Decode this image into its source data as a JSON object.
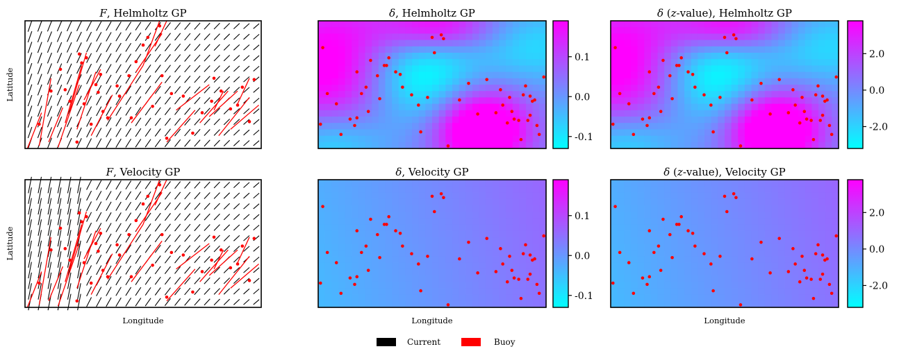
{
  "colors": {
    "current": "#000000",
    "buoy": "#ff0000",
    "cmap_low": "#00ffff",
    "cmap_high": "#ff00ff"
  },
  "chart_data": [
    {
      "type": "quiver",
      "title_italic": "F",
      "title_rest": ", Helmholtz GP",
      "xlabel": "",
      "ylabel": "Latitude",
      "series": [
        {
          "name": "Current"
        },
        {
          "name": "Buoy"
        }
      ]
    },
    {
      "type": "heatmap",
      "title_italic": "δ",
      "title_rest": ", Helmholtz GP",
      "colorbar": {
        "ticks": [
          0.1,
          0.0,
          -0.1
        ],
        "tick_labels": [
          "0.1",
          "0.0",
          "-0.1"
        ],
        "range": [
          -0.13,
          0.19
        ]
      }
    },
    {
      "type": "heatmap",
      "title_italic": "δ",
      "title_mid": " (",
      "title_italic2": "z",
      "title_rest": "-value), Helmholtz GP",
      "colorbar": {
        "ticks": [
          2.0,
          0.0,
          -2.0
        ],
        "tick_labels": [
          "2.0",
          "0.0",
          "-2.0"
        ],
        "range": [
          -3.2,
          3.8
        ]
      }
    },
    {
      "type": "quiver",
      "title_italic": "F",
      "title_rest": ", Velocity GP",
      "xlabel": "Longitude",
      "ylabel": "Latitude",
      "series": [
        {
          "name": "Current"
        },
        {
          "name": "Buoy"
        }
      ]
    },
    {
      "type": "heatmap",
      "title_italic": "δ",
      "title_rest": ", Velocity GP",
      "xlabel": "Longitude",
      "colorbar": {
        "ticks": [
          0.1,
          0.0,
          -0.1
        ],
        "tick_labels": [
          "0.1",
          "0.0",
          "-0.1"
        ],
        "range": [
          -0.13,
          0.19
        ]
      }
    },
    {
      "type": "heatmap",
      "title_italic": "δ",
      "title_mid": " (",
      "title_italic2": "z",
      "title_rest": "-value), Velocity GP",
      "xlabel": "Longitude",
      "colorbar": {
        "ticks": [
          2.0,
          0.0,
          -2.0
        ],
        "tick_labels": [
          "2.0",
          "0.0",
          "-2.0"
        ],
        "range": [
          -3.2,
          3.8
        ]
      }
    }
  ],
  "legend": {
    "entries": [
      {
        "label": "Current"
      },
      {
        "label": "Buoy"
      }
    ],
    "position": "bottom-center"
  }
}
